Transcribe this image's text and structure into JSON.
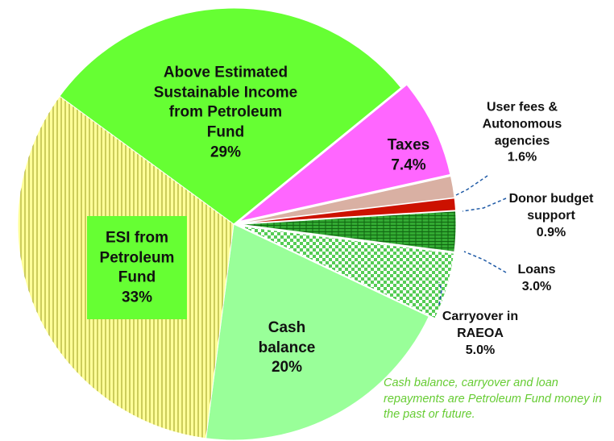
{
  "chart_data": {
    "type": "pie",
    "categories": [
      "Above Estimated Sustainable Income from Petroleum Fund",
      "Taxes",
      "User fees & Autonomous agencies",
      "Donor budget support",
      "Loans",
      "Carryover in RAEOA",
      "Cash balance",
      "ESI from Petroleum Fund"
    ],
    "values": [
      29,
      7.4,
      1.6,
      0.9,
      3.0,
      5.0,
      20,
      33
    ],
    "value_labels": [
      "29%",
      "7.4%",
      "1.6%",
      "0.9%",
      "3.0%",
      "5.0%",
      "20%",
      "33%"
    ],
    "colors": [
      "#66ff33",
      "#ff66ff",
      "#d9b0a3",
      "#cc1100",
      "url(#pat-brick)",
      "url(#pat-check)",
      "#99ff99",
      "url(#pat-stripe)"
    ],
    "annotation": "Cash balance, carryover and loan repayments are Petroleum Fund money in the past or future."
  }
}
